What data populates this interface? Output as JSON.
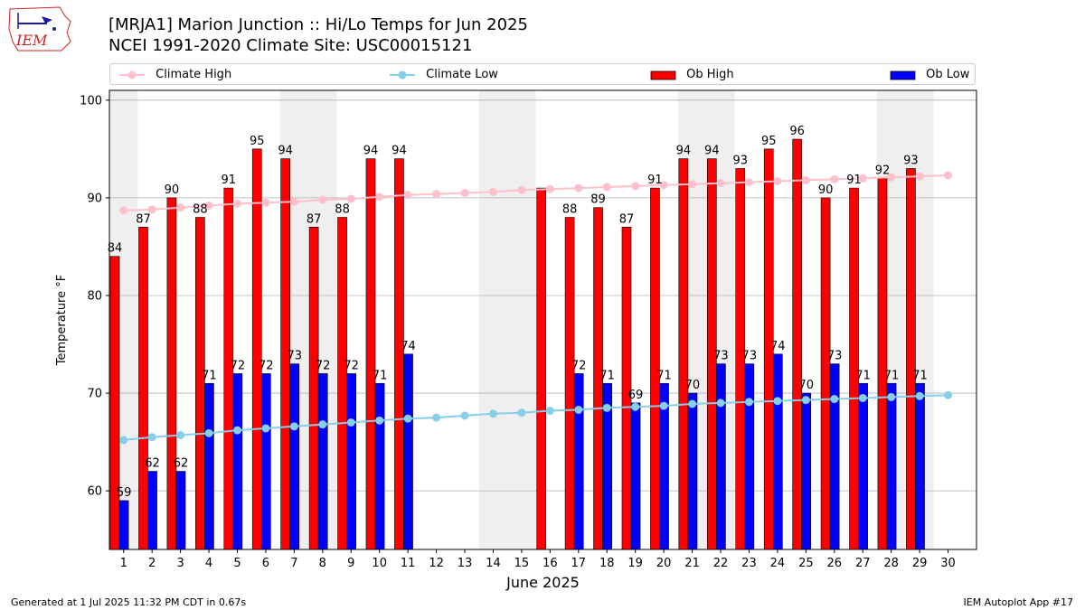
{
  "header": {
    "title_line1": "[MRJA1] Marion Junction :: Hi/Lo Temps for Jun 2025",
    "title_line2": "NCEI 1991-2020 Climate Site: USC00015121",
    "logo_text": "IEM"
  },
  "footer": {
    "generated": "Generated at 1 Jul 2025 11:32 PM CDT in 0.67s",
    "app": "IEM Autoplot App #17"
  },
  "legend": {
    "climate_high": "Climate High",
    "climate_low": "Climate Low",
    "ob_high": "Ob High",
    "ob_low": "Ob Low",
    "placement": "top, above plot"
  },
  "colors": {
    "ob_high": "#ff0000",
    "ob_low": "#0000ff",
    "climate_high": "#ffc0cb",
    "climate_low": "#87ceeb",
    "weekend_shade": "#efefef",
    "grid": "#b0b0b0"
  },
  "chart_data": {
    "type": "bar",
    "xlabel": "June 2025",
    "ylabel": "Temperature °F",
    "ylim": [
      54,
      101
    ],
    "yticks": [
      60,
      70,
      80,
      90,
      100
    ],
    "grid": "horizontal",
    "categories": [
      1,
      2,
      3,
      4,
      5,
      6,
      7,
      8,
      9,
      10,
      11,
      12,
      13,
      14,
      15,
      16,
      17,
      18,
      19,
      20,
      21,
      22,
      23,
      24,
      25,
      26,
      27,
      28,
      29,
      30
    ],
    "weekend_days": [
      1,
      7,
      8,
      14,
      15,
      21,
      22,
      28,
      29
    ],
    "series": [
      {
        "name": "Ob High",
        "kind": "bar",
        "values": [
          84,
          87,
          90,
          88,
          91,
          95,
          94,
          87,
          88,
          94,
          94,
          null,
          null,
          null,
          null,
          91,
          88,
          89,
          87,
          91,
          94,
          94,
          93,
          95,
          96,
          90,
          91,
          92,
          93,
          null
        ]
      },
      {
        "name": "Ob Low",
        "kind": "bar",
        "values": [
          59,
          62,
          62,
          71,
          72,
          72,
          73,
          72,
          72,
          71,
          74,
          null,
          null,
          null,
          null,
          null,
          72,
          71,
          69,
          71,
          70,
          73,
          73,
          74,
          70,
          73,
          71,
          71,
          71,
          null
        ]
      },
      {
        "name": "Climate High",
        "kind": "line",
        "values": [
          88.7,
          88.8,
          89.0,
          89.2,
          89.4,
          89.5,
          89.6,
          89.8,
          89.9,
          90.1,
          90.3,
          90.4,
          90.5,
          90.6,
          90.8,
          90.9,
          91.0,
          91.1,
          91.2,
          91.3,
          91.4,
          91.5,
          91.6,
          91.7,
          91.8,
          91.9,
          92.0,
          92.1,
          92.2,
          92.3
        ]
      },
      {
        "name": "Climate Low",
        "kind": "line",
        "values": [
          65.2,
          65.5,
          65.7,
          65.9,
          66.2,
          66.4,
          66.6,
          66.8,
          67.0,
          67.2,
          67.4,
          67.5,
          67.7,
          67.9,
          68.0,
          68.2,
          68.3,
          68.5,
          68.6,
          68.7,
          68.9,
          69.0,
          69.1,
          69.2,
          69.3,
          69.4,
          69.5,
          69.6,
          69.7,
          69.8
        ]
      }
    ],
    "high_labels": [
      "84",
      "87",
      "90",
      "88",
      "91",
      "95",
      "94",
      "87",
      "88",
      "94",
      "94",
      "",
      "",
      "",
      "",
      "",
      "88",
      "89",
      "87",
      "91",
      "94",
      "94",
      "93",
      "95",
      "96",
      "90",
      "91",
      "92",
      "93",
      ""
    ],
    "low_labels": [
      "59",
      "62",
      "62",
      "71",
      "72",
      "72",
      "73",
      "72",
      "72",
      "71",
      "74",
      "",
      "",
      "",
      "",
      "",
      "72",
      "71",
      "69",
      "71",
      "70",
      "73",
      "73",
      "74",
      "70",
      "73",
      "71",
      "71",
      "71",
      ""
    ]
  }
}
